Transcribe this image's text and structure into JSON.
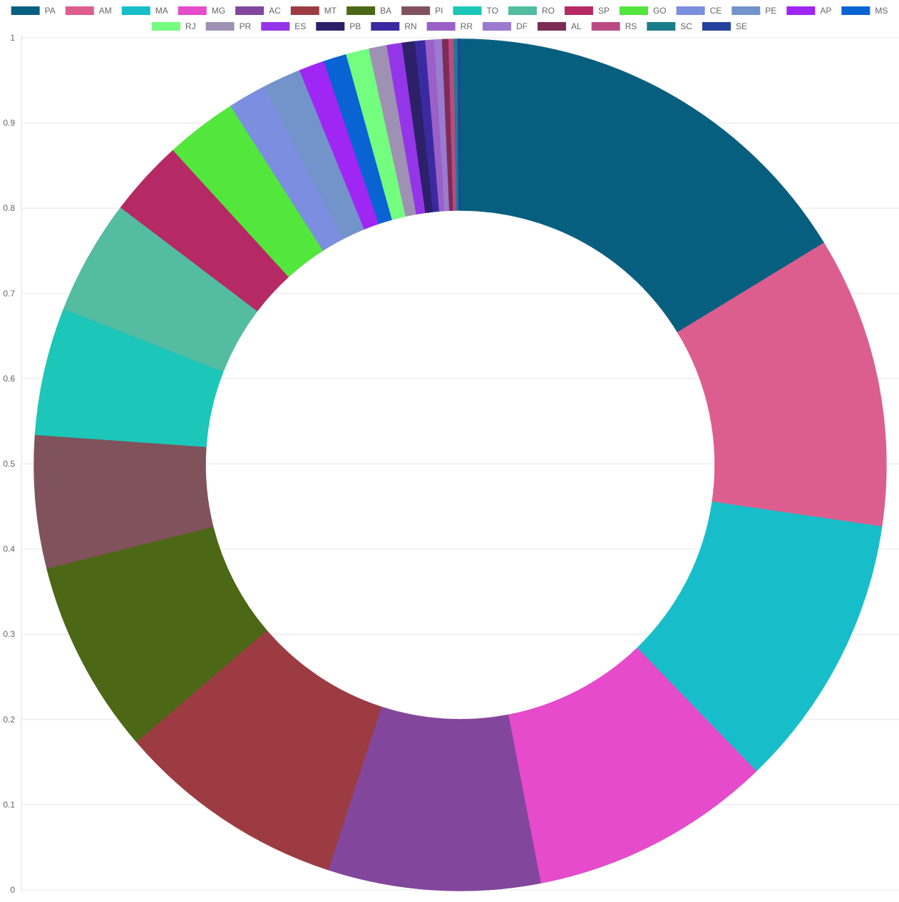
{
  "chart_data": {
    "type": "pie",
    "variant": "doughnut",
    "title": "",
    "legend_position": "top",
    "grid": true,
    "ylim": [
      0,
      1
    ],
    "yticks": [
      "0",
      "0.1",
      "0.2",
      "0.3",
      "0.4",
      "0.5",
      "0.6",
      "0.7",
      "0.8",
      "0.9",
      "1"
    ],
    "slices": [
      {
        "label": "PA",
        "value": 0.168,
        "color": "#075f80"
      },
      {
        "label": "AM",
        "value": 0.114,
        "color": "#dc5e8e"
      },
      {
        "label": "MA",
        "value": 0.108,
        "color": "#17bec9"
      },
      {
        "label": "MG",
        "value": 0.095,
        "color": "#e54bcb"
      },
      {
        "label": "AC",
        "value": 0.083,
        "color": "#82469c"
      },
      {
        "label": "MT",
        "value": 0.09,
        "color": "#9c3c42"
      },
      {
        "label": "BA",
        "value": 0.076,
        "color": "#4c6715"
      },
      {
        "label": "PI",
        "value": 0.052,
        "color": "#80525b"
      },
      {
        "label": "TO",
        "value": 0.05,
        "color": "#1cc6b8"
      },
      {
        "label": "RO",
        "value": 0.045,
        "color": "#53bca1"
      },
      {
        "label": "SP",
        "value": 0.03,
        "color": "#b52a64"
      },
      {
        "label": "GO",
        "value": 0.028,
        "color": "#53e63c"
      },
      {
        "label": "CE",
        "value": 0.015,
        "color": "#7b8ee0"
      },
      {
        "label": "PE",
        "value": 0.015,
        "color": "#7393cb"
      },
      {
        "label": "AP",
        "value": 0.01,
        "color": "#9f26f3"
      },
      {
        "label": "MS",
        "value": 0.009,
        "color": "#0a63d3"
      },
      {
        "label": "RJ",
        "value": 0.009,
        "color": "#73fe7f"
      },
      {
        "label": "PR",
        "value": 0.007,
        "color": "#9f91b3"
      },
      {
        "label": "ES",
        "value": 0.006,
        "color": "#9535e8"
      },
      {
        "label": "PB",
        "value": 0.005,
        "color": "#2c2068"
      },
      {
        "label": "RN",
        "value": 0.004,
        "color": "#3a2aa1"
      },
      {
        "label": "RR",
        "value": 0.0035,
        "color": "#9b60c8"
      },
      {
        "label": "DF",
        "value": 0.003,
        "color": "#9a7bd0"
      },
      {
        "label": "AL",
        "value": 0.0025,
        "color": "#7d2d55"
      },
      {
        "label": "RS",
        "value": 0.002,
        "color": "#bb4a84"
      },
      {
        "label": "SC",
        "value": 0.0015,
        "color": "#1b7d8a"
      },
      {
        "label": "SE",
        "value": 0.001,
        "color": "#25429e"
      }
    ]
  }
}
